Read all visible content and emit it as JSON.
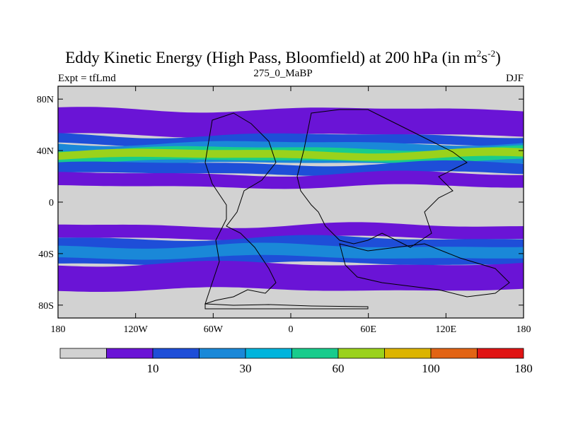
{
  "chart_data": {
    "type": "heatmap",
    "title": {
      "prefix": "Eddy Kinetic Energy (High Pass, Bloomfield) at 200 hPa (in m",
      "sup1": "2",
      "mid": "s",
      "sup2": "-2",
      "suffix": ")"
    },
    "subtitle_left": "Expt = tfLmd",
    "subtitle_center": "275_0_MaBP",
    "subtitle_right": "DJF",
    "x_range": [
      -180,
      180
    ],
    "y_range": [
      -90,
      90
    ],
    "x_ticks": [
      {
        "value": -180,
        "label": "180"
      },
      {
        "value": -120,
        "label": "120W"
      },
      {
        "value": -60,
        "label": "60W"
      },
      {
        "value": 0,
        "label": "0"
      },
      {
        "value": 60,
        "label": "60E"
      },
      {
        "value": 120,
        "label": "120E"
      },
      {
        "value": 180,
        "label": "180"
      }
    ],
    "y_ticks": [
      {
        "value": 80,
        "label": "80N"
      },
      {
        "value": 40,
        "label": "40N"
      },
      {
        "value": 0,
        "label": "0"
      },
      {
        "value": -40,
        "label": "40S"
      },
      {
        "value": -80,
        "label": "80S"
      }
    ],
    "levels": [
      5,
      10,
      20,
      30,
      45,
      60,
      80,
      100,
      120,
      180
    ],
    "colors": [
      "#d2d2d2",
      "#6a14d6",
      "#1e4ed8",
      "#1a88d8",
      "#00b4dc",
      "#18cc8c",
      "#9ad21c",
      "#dcb400",
      "#e26414",
      "#e01414"
    ],
    "colorbar_labels": [
      {
        "level": 10,
        "label": "10"
      },
      {
        "level": 30,
        "label": "30"
      },
      {
        "level": 60,
        "label": "60"
      },
      {
        "level": 100,
        "label": "100"
      },
      {
        "level": 180,
        "label": "180"
      }
    ],
    "bands": [
      {
        "lat_max": 72,
        "lat_min": 52,
        "bin": 1
      },
      {
        "lat_max": 52,
        "lat_min": 45,
        "bin": 2
      },
      {
        "lat_max": 46,
        "lat_min": 30,
        "bin": 3
      },
      {
        "lat_max": 42,
        "lat_min": 32,
        "bin": 5
      },
      {
        "lat_max": 40,
        "lat_min": 34,
        "bin": 6
      },
      {
        "lat_max": 30,
        "lat_min": 22,
        "bin": 2
      },
      {
        "lat_max": 22,
        "lat_min": 12,
        "bin": 1
      },
      {
        "lat_max": -18,
        "lat_min": -28,
        "bin": 1
      },
      {
        "lat_max": -28,
        "lat_min": -48,
        "bin": 2
      },
      {
        "lat_max": -34,
        "lat_min": -43,
        "bin": 3
      },
      {
        "lat_max": -48,
        "lat_min": -68,
        "bin": 1
      }
    ]
  }
}
